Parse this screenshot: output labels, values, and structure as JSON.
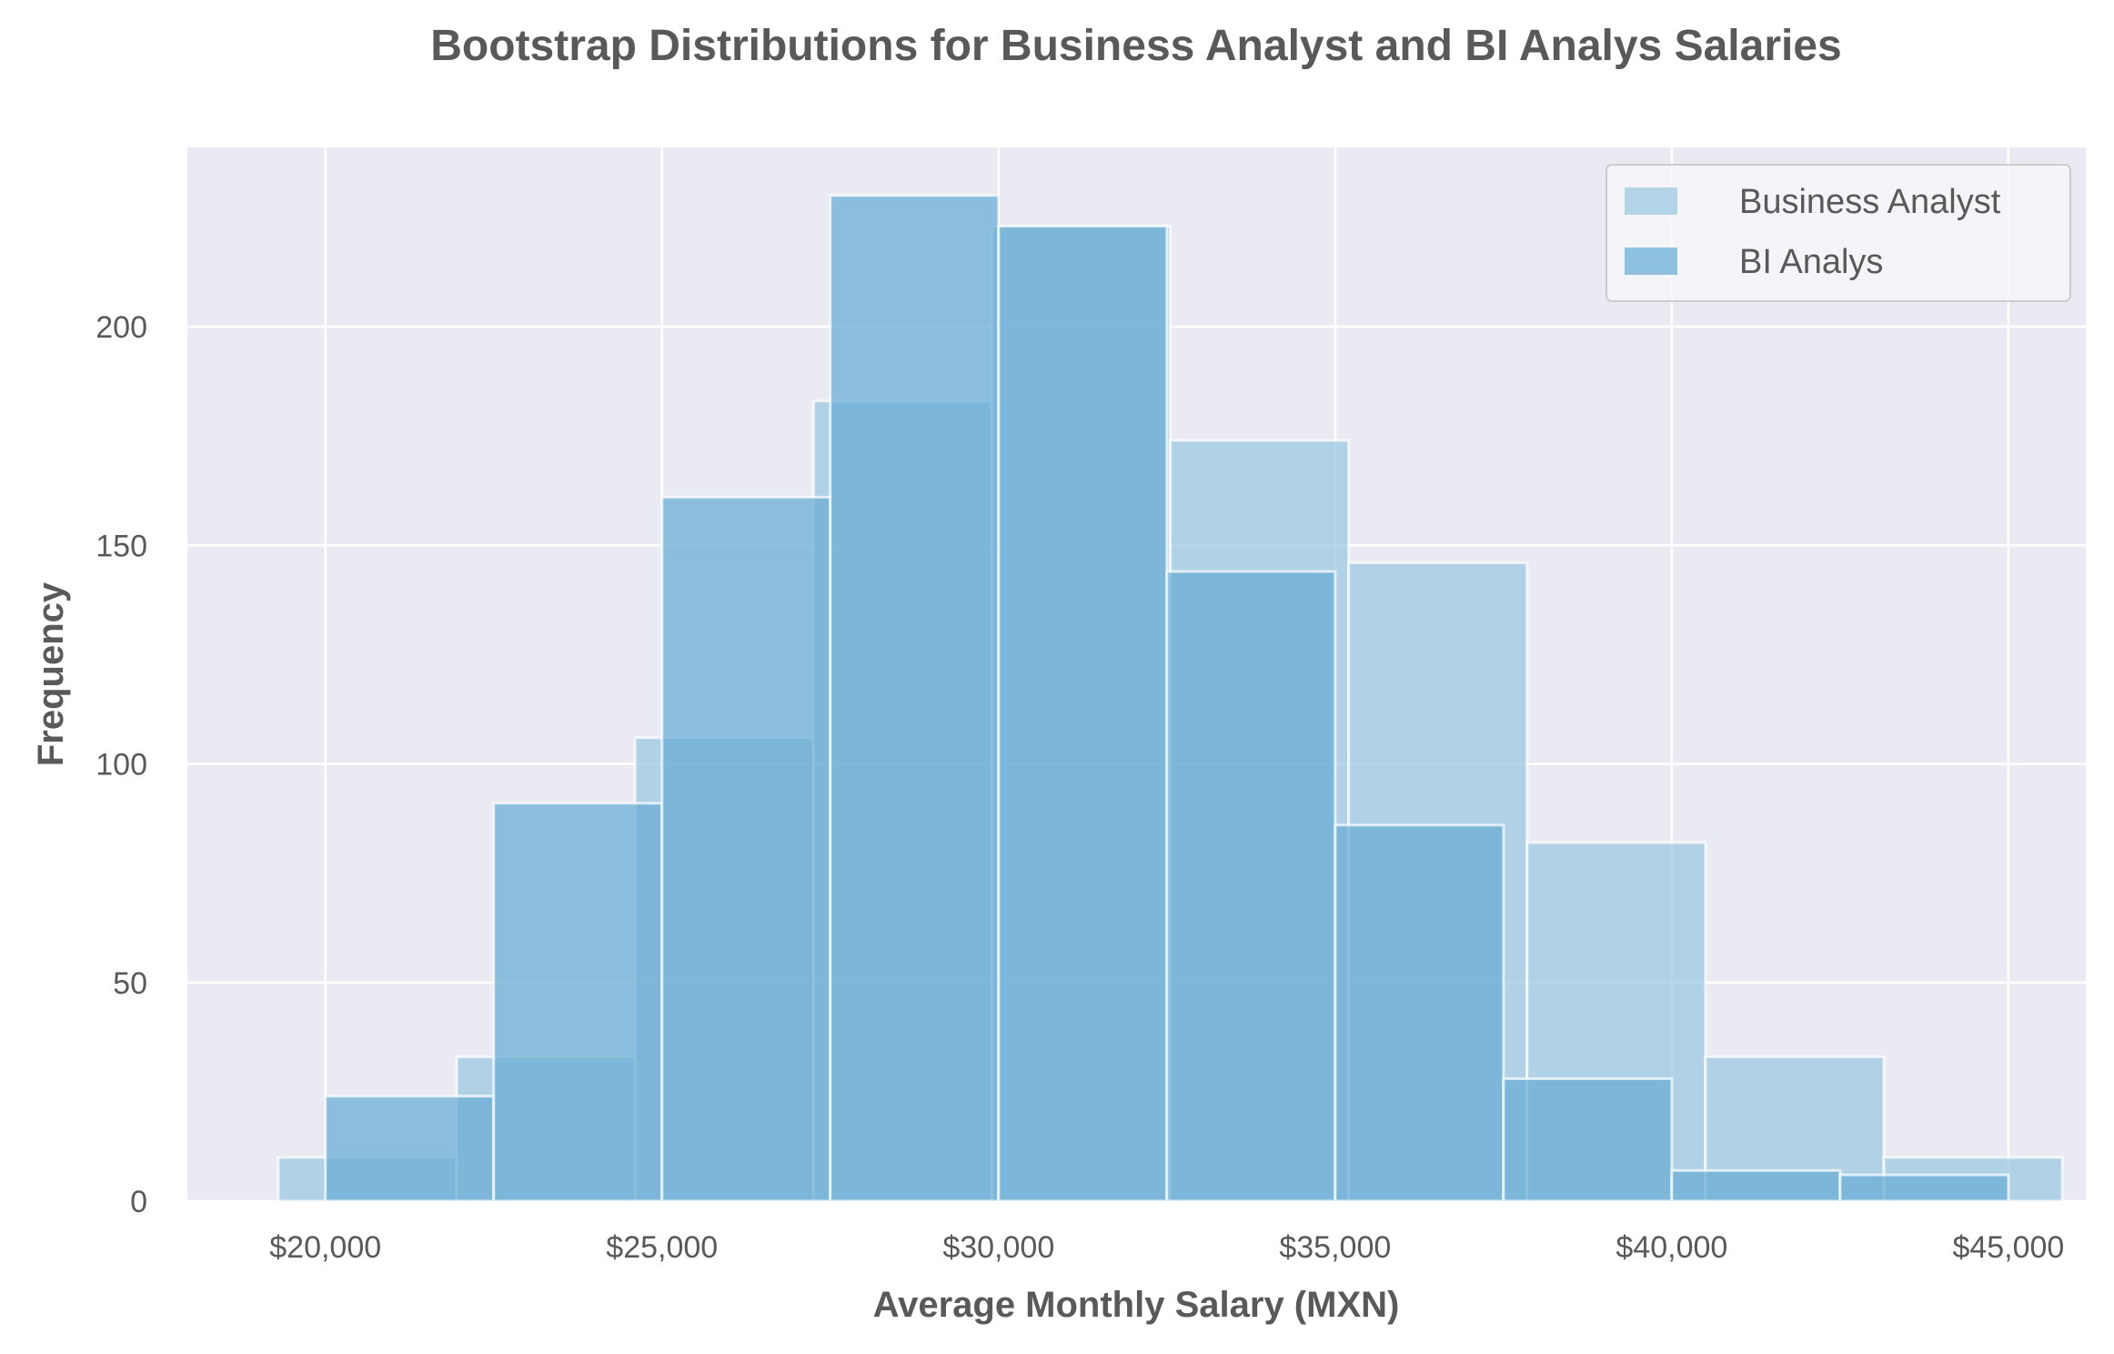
{
  "chart_data": {
    "type": "bar",
    "subtype": "histogram",
    "title": "Bootstrap Distributions for Business Analyst and BI Analys Salaries",
    "xlabel": "Average Monthly Salary (MXN)",
    "ylabel": "Frequency",
    "xlim": [
      17950,
      46150
    ],
    "ylim": [
      0,
      241
    ],
    "x_ticks": [
      20000,
      25000,
      30000,
      35000,
      40000,
      45000
    ],
    "x_tick_labels": [
      "$20,000",
      "$25,000",
      "$30,000",
      "$35,000",
      "$40,000",
      "$45,000"
    ],
    "y_ticks": [
      0,
      50,
      100,
      150,
      200
    ],
    "y_tick_labels": [
      "0",
      "50",
      "100",
      "150",
      "200"
    ],
    "grid": true,
    "legend_position": "top-right",
    "series": [
      {
        "name": "Business Analyst",
        "color": "#9ecae1",
        "bins": [
          {
            "x0": 19300,
            "x1": 21950,
            "value": 10
          },
          {
            "x0": 21950,
            "x1": 24600,
            "value": 33
          },
          {
            "x0": 24600,
            "x1": 27250,
            "value": 106
          },
          {
            "x0": 27250,
            "x1": 29900,
            "value": 183
          },
          {
            "x0": 29900,
            "x1": 32550,
            "value": 223
          },
          {
            "x0": 32550,
            "x1": 35200,
            "value": 174
          },
          {
            "x0": 35200,
            "x1": 37850,
            "value": 146
          },
          {
            "x0": 37850,
            "x1": 40500,
            "value": 82
          },
          {
            "x0": 40500,
            "x1": 43150,
            "value": 33
          },
          {
            "x0": 43150,
            "x1": 45800,
            "value": 10
          }
        ]
      },
      {
        "name": "BI Analys",
        "color": "#6baed6",
        "bins": [
          {
            "x0": 20000,
            "x1": 22500,
            "value": 24
          },
          {
            "x0": 22500,
            "x1": 25000,
            "value": 91
          },
          {
            "x0": 25000,
            "x1": 27500,
            "value": 161
          },
          {
            "x0": 27500,
            "x1": 30000,
            "value": 230
          },
          {
            "x0": 30000,
            "x1": 32500,
            "value": 223
          },
          {
            "x0": 32500,
            "x1": 35000,
            "value": 144
          },
          {
            "x0": 35000,
            "x1": 37500,
            "value": 86
          },
          {
            "x0": 37500,
            "x1": 40000,
            "value": 28
          },
          {
            "x0": 40000,
            "x1": 42500,
            "value": 7
          },
          {
            "x0": 42500,
            "x1": 45000,
            "value": 6
          }
        ]
      }
    ]
  }
}
